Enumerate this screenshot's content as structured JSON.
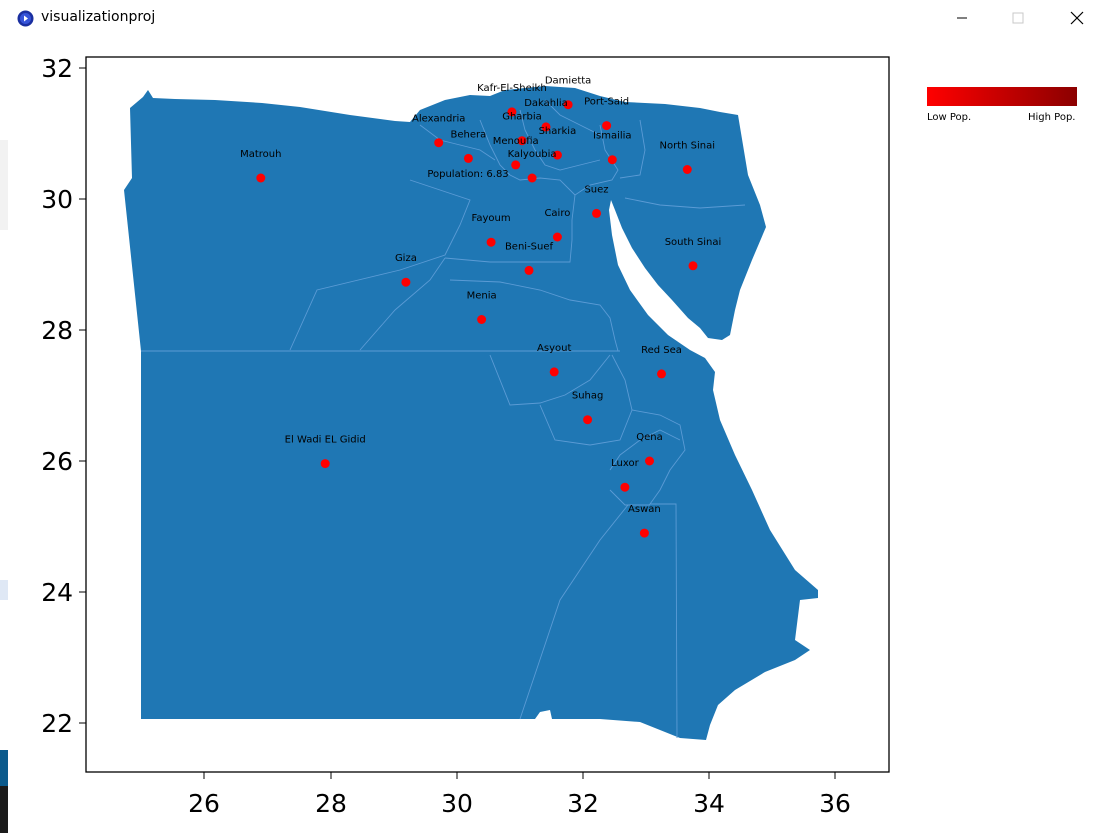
{
  "window": {
    "title": "visualizationproj",
    "controls": {
      "minimize": "minimize-icon",
      "maximize": "maximize-icon",
      "close": "close-icon"
    }
  },
  "legend": {
    "low_label": "Low Pop.",
    "high_label": "High Pop.",
    "colors": [
      "#ff0000",
      "#8b0000"
    ]
  },
  "map_colors": {
    "land": "#1f77b4",
    "border": "#5b9bd5",
    "marker": "#ff0000"
  },
  "chart_data": {
    "type": "scatter",
    "xlim": [
      24.2,
      36.9
    ],
    "ylim": [
      21.25,
      32.2
    ],
    "xticks": [
      "26",
      "28",
      "30",
      "32",
      "34",
      "36"
    ],
    "yticks": [
      "22",
      "24",
      "26",
      "28",
      "30",
      "32"
    ],
    "grid": false,
    "points": [
      {
        "name": "Matrouh",
        "lon": 26.9,
        "lat": 30.32
      },
      {
        "name": "Alexandria",
        "lon": 29.72,
        "lat": 30.86
      },
      {
        "name": "Behera",
        "lon": 30.19,
        "lat": 30.62
      },
      {
        "name": "Kafr-El-Sheikh",
        "lon": 30.88,
        "lat": 31.33
      },
      {
        "name": "Damietta",
        "lon": 31.77,
        "lat": 31.44
      },
      {
        "name": "Dakahlia",
        "lon": 31.42,
        "lat": 31.1
      },
      {
        "name": "Gharbia",
        "lon": 31.04,
        "lat": 30.89
      },
      {
        "name": "Port-Said",
        "lon": 32.38,
        "lat": 31.12
      },
      {
        "name": "Sharkia",
        "lon": 31.6,
        "lat": 30.67
      },
      {
        "name": "Menoufia",
        "lon": 30.94,
        "lat": 30.52
      },
      {
        "name": "Kalyoubia",
        "lon": 31.2,
        "lat": 30.32
      },
      {
        "name": "Ismailia",
        "lon": 32.47,
        "lat": 30.6
      },
      {
        "name": "North Sinai",
        "lon": 33.66,
        "lat": 30.45
      },
      {
        "name": "Suez",
        "lon": 32.22,
        "lat": 29.78
      },
      {
        "name": "Cairo",
        "lon": 31.6,
        "lat": 29.42
      },
      {
        "name": "Fayoum",
        "lon": 30.55,
        "lat": 29.34
      },
      {
        "name": "Beni-Suef",
        "lon": 31.15,
        "lat": 28.91
      },
      {
        "name": "Giza",
        "lon": 29.2,
        "lat": 28.73
      },
      {
        "name": "South Sinai",
        "lon": 33.75,
        "lat": 28.98
      },
      {
        "name": "Menia",
        "lon": 30.4,
        "lat": 28.16
      },
      {
        "name": "Asyout",
        "lon": 31.55,
        "lat": 27.36
      },
      {
        "name": "Red Sea",
        "lon": 33.25,
        "lat": 27.33
      },
      {
        "name": "Suhag",
        "lon": 32.08,
        "lat": 26.63
      },
      {
        "name": "El Wadi EL Gidid",
        "lon": 27.92,
        "lat": 25.96
      },
      {
        "name": "Qena",
        "lon": 33.06,
        "lat": 26.0
      },
      {
        "name": "Luxor",
        "lon": 32.67,
        "lat": 25.6
      },
      {
        "name": "Aswan",
        "lon": 32.98,
        "lat": 24.9
      }
    ],
    "hover_annotation": "Population: 6.83"
  }
}
